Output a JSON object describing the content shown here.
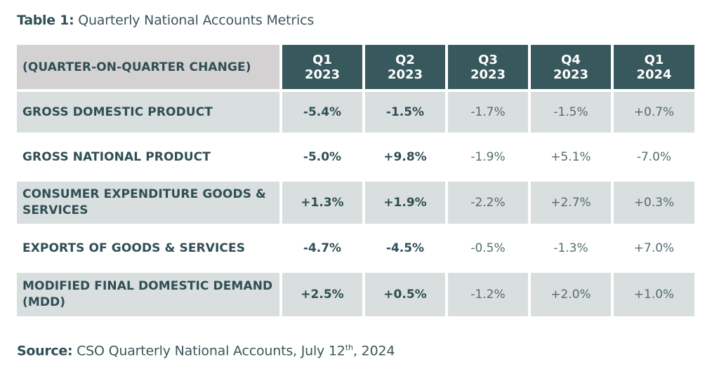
{
  "caption": {
    "lead": "Table 1:",
    "text": " Quarterly National Accounts Metrics"
  },
  "table": {
    "header_label": "(QUARTER-ON-QUARTER CHANGE)",
    "columns": [
      {
        "q": "Q1",
        "year": "2023"
      },
      {
        "q": "Q2",
        "year": "2023"
      },
      {
        "q": "Q3",
        "year": "2023"
      },
      {
        "q": "Q4",
        "year": "2023"
      },
      {
        "q": "Q1",
        "year": "2024"
      }
    ],
    "rows": [
      {
        "label": "GROSS DOMESTIC PRODUCT",
        "values": [
          "-5.4%",
          "-1.5%",
          "-1.7%",
          "-1.5%",
          "+0.7%"
        ]
      },
      {
        "label": "GROSS NATIONAL PRODUCT",
        "values": [
          "-5.0%",
          "+9.8%",
          "-1.9%",
          "+5.1%",
          "-7.0%"
        ]
      },
      {
        "label": "CONSUMER EXPENDITURE GOODS & SERVICES",
        "values": [
          "+1.3%",
          "+1.9%",
          "-2.2%",
          "+2.7%",
          "+0.3%"
        ]
      },
      {
        "label": "EXPORTS OF GOODS & SERVICES",
        "values": [
          "-4.7%",
          "-4.5%",
          "-0.5%",
          "-1.3%",
          "+7.0%"
        ]
      },
      {
        "label": "MODIFIED FINAL DOMESTIC DEMAND (MDD)",
        "values": [
          "+2.5%",
          "+0.5%",
          "-1.2%",
          "+2.0%",
          "+1.0%"
        ]
      }
    ]
  },
  "source": {
    "lead": "Source:",
    "text": " CSO Quarterly National Accounts, July 12",
    "sup": "th",
    "tail": ", 2024"
  },
  "colors": {
    "header_dark": "#37585c",
    "header_light": "#d3d1d1",
    "row_shade": "#d9dede",
    "text": "#2f4f55"
  }
}
